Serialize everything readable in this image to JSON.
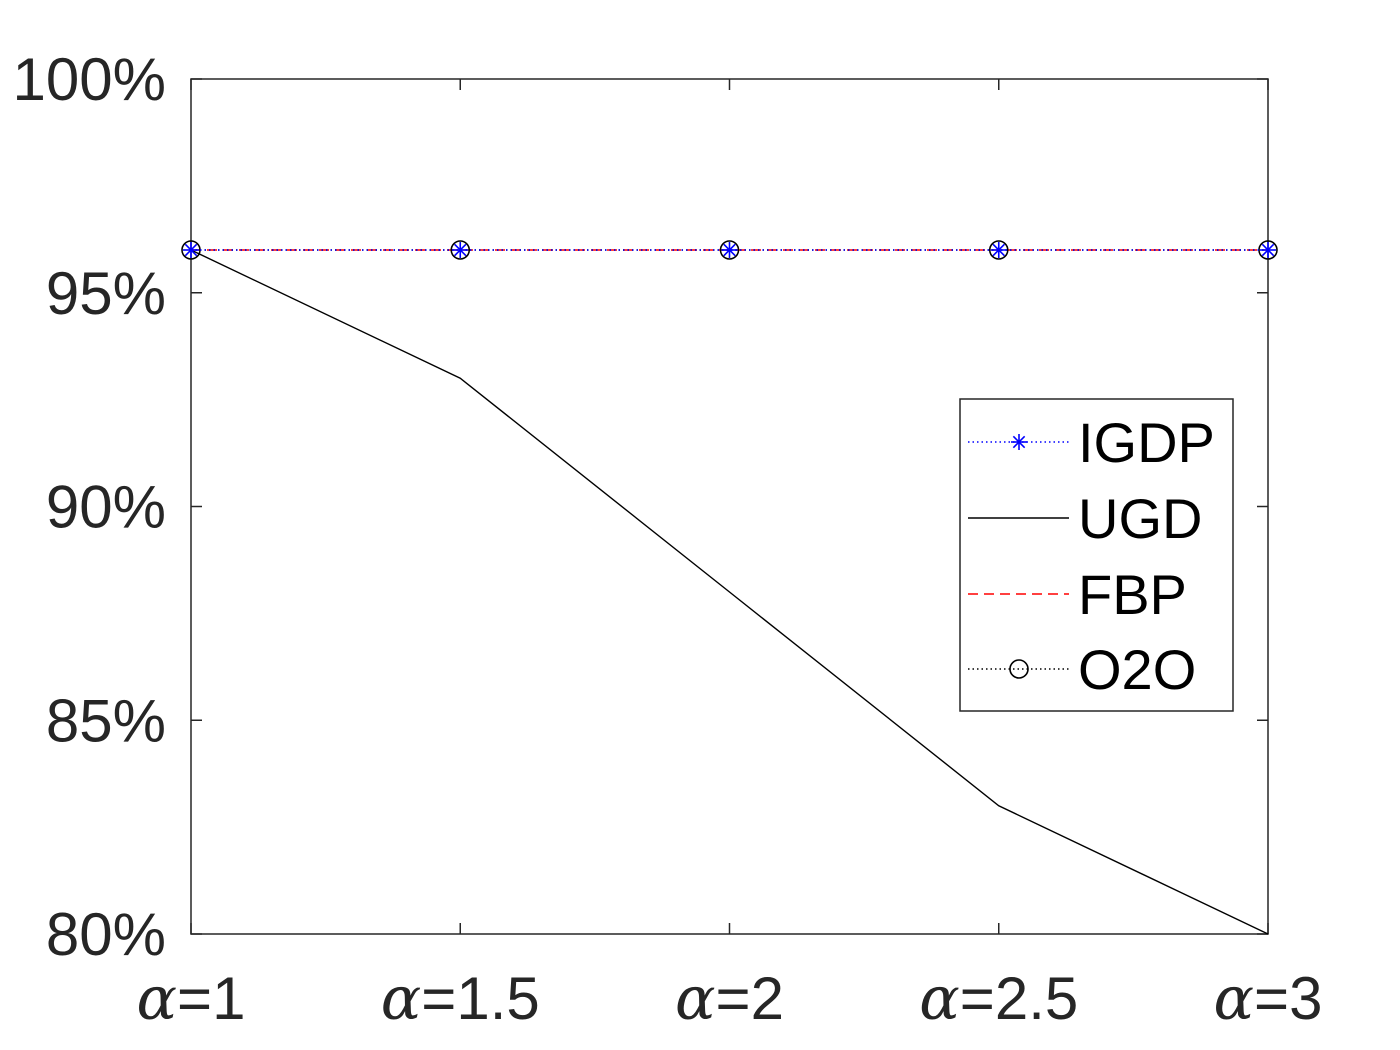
{
  "chart_data": {
    "type": "line",
    "categories": [
      "α=1",
      "α=1.5",
      "α=2",
      "α=2.5",
      "α=3"
    ],
    "ylim": [
      80,
      100
    ],
    "y_ticks": [
      "80%",
      "85%",
      "90%",
      "95%",
      "100%"
    ],
    "y_tick_values": [
      80,
      85,
      90,
      95,
      100
    ],
    "grid": false,
    "legend_position": "right",
    "series": [
      {
        "name": "IGDP",
        "values": [
          96,
          96,
          96,
          96,
          96
        ],
        "color": "#0000ff",
        "line_style": "dotted",
        "marker": "asterisk"
      },
      {
        "name": "UGD",
        "values": [
          96,
          93,
          88,
          83,
          80
        ],
        "color": "#000000",
        "line_style": "solid",
        "marker": "none"
      },
      {
        "name": "FBP",
        "values": [
          96,
          96,
          96,
          96,
          96
        ],
        "color": "#ff0000",
        "line_style": "dashed",
        "marker": "none"
      },
      {
        "name": "O2O",
        "values": [
          96,
          96,
          96,
          96,
          96
        ],
        "color": "#000000",
        "line_style": "dotted",
        "marker": "circle"
      }
    ]
  }
}
